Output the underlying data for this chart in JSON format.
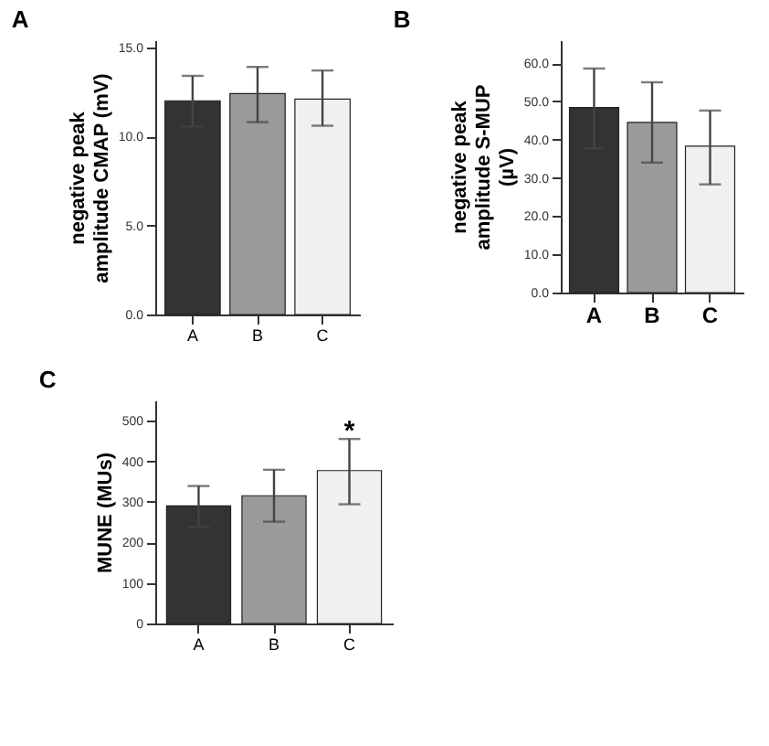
{
  "chart_data": [
    {
      "type": "bar",
      "title": "A",
      "ylabel": "negative peak amplitude CMAP (mV)",
      "categories": [
        "A",
        "B",
        "C"
      ],
      "values": [
        12.0,
        12.4,
        12.1
      ],
      "errors": [
        [
          10.55,
          13.4
        ],
        [
          10.8,
          13.9
        ],
        [
          10.6,
          13.7
        ]
      ],
      "colors": [
        "#333333",
        "#9a9a9a",
        "#f0f0f0"
      ],
      "ylim": [
        0,
        15.4
      ],
      "yticks": [
        {
          "value": 0,
          "label": "0.0"
        },
        {
          "value": 5,
          "label": "5.0"
        },
        {
          "value": 10,
          "label": "10.0"
        },
        {
          "value": 15,
          "label": "15.0"
        }
      ],
      "grid": false
    },
    {
      "type": "bar",
      "title": "B",
      "ylabel": "negative peak amplitude S-MUP (µV)",
      "categories": [
        "A",
        "B",
        "C"
      ],
      "values": [
        48.4,
        44.5,
        38.3
      ],
      "errors": [
        [
          37.7,
          58.6
        ],
        [
          34.0,
          55.0
        ],
        [
          28.3,
          47.6
        ]
      ],
      "colors": [
        "#333333",
        "#8a8a8a",
        "#f0f0f0"
      ],
      "ylim": [
        0,
        66
      ],
      "yticks": [
        {
          "value": 0,
          "label": "0.0"
        },
        {
          "value": 10,
          "label": "10.0"
        },
        {
          "value": 20,
          "label": "20.0"
        },
        {
          "value": 30,
          "label": "30.0"
        },
        {
          "value": 40,
          "label": "40.0"
        },
        {
          "value": 50,
          "label": "50.0"
        },
        {
          "value": 60,
          "label": "60.0"
        }
      ],
      "grid": false
    },
    {
      "type": "bar",
      "title": "C",
      "ylabel": "MUNE (MUs)",
      "categories": [
        "A",
        "B",
        "C"
      ],
      "values": [
        290,
        315,
        377
      ],
      "errors": [
        [
          238,
          339
        ],
        [
          251,
          379
        ],
        [
          294,
          455
        ]
      ],
      "colors": [
        "#333333",
        "#9a9a9a",
        "#f0f0f0"
      ],
      "ylim": [
        0,
        550
      ],
      "yticks": [
        0,
        100,
        200,
        300,
        400,
        500
      ],
      "grid": false,
      "annotations": [
        {
          "text": "*",
          "x": "C",
          "y": 475
        }
      ]
    }
  ]
}
